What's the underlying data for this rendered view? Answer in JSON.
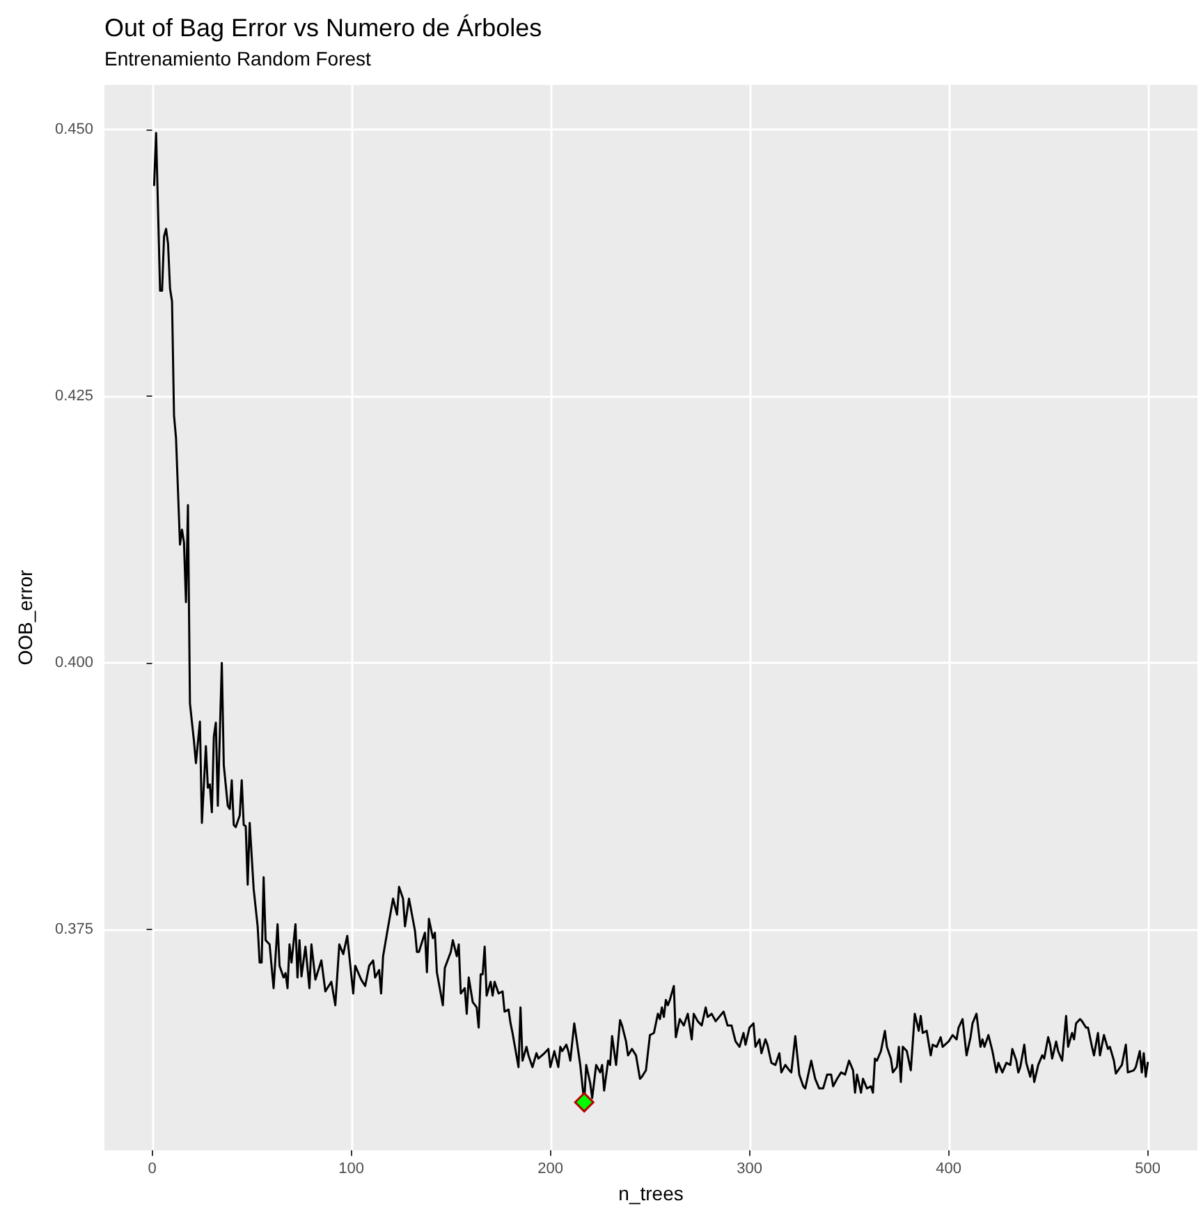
{
  "chart_data": {
    "type": "line",
    "title": "Out of Bag Error vs Numero de Árboles",
    "subtitle": "Entrenamiento Random Forest",
    "xlabel": "n_trees",
    "ylabel": "OOB_error",
    "xlim": [
      -23.95,
      524.95
    ],
    "xticks": [
      0,
      100,
      200,
      300,
      400,
      500
    ],
    "ylim": [
      0.3543,
      0.4542
    ],
    "yticks": [
      {
        "value": 0.375,
        "label": "0.375"
      },
      {
        "value": 0.4,
        "label": "0.400"
      },
      {
        "value": 0.425,
        "label": "0.425"
      },
      {
        "value": 0.45,
        "label": "0.450"
      }
    ],
    "grid": true,
    "marker": "none",
    "line_style": "solid",
    "series": [
      {
        "type": "line",
        "color": "#000000",
        "x": [
          1,
          2,
          4,
          5,
          6,
          7,
          8,
          9,
          10,
          11,
          12,
          14,
          15,
          16,
          17,
          18,
          19,
          21,
          22,
          24,
          25,
          27,
          28,
          29,
          30,
          31,
          32,
          33,
          35,
          36,
          38,
          39,
          40,
          41,
          42,
          44,
          45,
          46,
          47,
          48,
          49,
          51,
          53,
          54,
          55,
          56,
          57,
          59,
          61,
          63,
          64,
          66,
          67,
          68,
          69,
          70,
          72,
          73,
          74,
          75,
          77,
          79,
          80,
          82,
          85,
          87,
          90,
          92,
          94,
          96,
          98,
          101,
          102,
          105,
          107,
          109,
          111,
          112,
          114,
          115,
          116,
          118,
          121,
          123,
          124,
          126,
          127,
          129,
          132,
          133,
          134,
          137,
          138,
          139,
          141,
          142,
          143,
          146,
          147,
          150,
          151,
          153,
          154,
          155,
          157,
          158,
          159,
          161,
          163,
          164,
          165,
          166,
          167,
          168,
          170,
          171,
          172,
          174,
          176,
          177,
          179,
          180,
          181,
          184,
          185,
          186,
          188,
          189,
          191,
          193,
          194,
          197,
          199,
          200,
          202,
          204,
          205,
          206,
          208,
          209,
          210,
          212,
          213,
          215,
          217,
          218,
          220,
          221,
          223,
          225,
          226,
          227,
          229,
          230,
          231,
          233,
          235,
          236,
          238,
          239,
          241,
          243,
          245,
          246,
          248,
          250,
          252,
          254,
          255,
          256,
          257,
          258,
          259,
          260,
          262,
          263,
          265,
          267,
          269,
          271,
          272,
          274,
          276,
          278,
          279,
          281,
          283,
          287,
          289,
          291,
          293,
          295,
          297,
          298,
          300,
          302,
          303,
          305,
          306,
          308,
          309,
          311,
          313,
          315,
          316,
          318,
          320,
          321,
          323,
          325,
          327,
          328,
          331,
          333,
          335,
          337,
          339,
          341,
          342,
          344,
          346,
          348,
          350,
          352,
          353,
          354,
          356,
          357,
          359,
          361,
          362,
          363,
          364,
          366,
          368,
          369,
          371,
          372,
          374,
          375,
          376,
          377,
          379,
          381,
          383,
          385,
          386,
          387,
          389,
          391,
          392,
          394,
          396,
          397,
          400,
          402,
          404,
          405,
          407,
          409,
          411,
          412,
          414,
          416,
          417,
          418,
          420,
          422,
          424,
          425,
          427,
          429,
          431,
          432,
          434,
          435,
          436,
          438,
          439,
          441,
          442,
          443,
          445,
          447,
          448,
          450,
          451,
          452,
          454,
          455,
          457,
          459,
          460,
          462,
          463,
          464,
          466,
          467,
          469,
          470,
          472,
          473,
          475,
          476,
          478,
          480,
          481,
          483,
          484,
          487,
          489,
          490,
          493,
          494,
          496,
          497,
          498,
          499,
          500
        ],
        "values": [
          0.4448,
          0.4497,
          0.4349,
          0.4349,
          0.44,
          0.4407,
          0.4393,
          0.4351,
          0.4339,
          0.4232,
          0.4211,
          0.4111,
          0.4125,
          0.4113,
          0.4057,
          0.4148,
          0.3962,
          0.3927,
          0.3906,
          0.3945,
          0.385,
          0.3922,
          0.3883,
          0.3886,
          0.386,
          0.3931,
          0.3944,
          0.3866,
          0.4,
          0.3904,
          0.3866,
          0.3863,
          0.389,
          0.3848,
          0.3846,
          0.3857,
          0.389,
          0.3848,
          0.3847,
          0.3792,
          0.385,
          0.3788,
          0.3753,
          0.3719,
          0.3719,
          0.3799,
          0.374,
          0.3736,
          0.3695,
          0.3755,
          0.3716,
          0.3705,
          0.3709,
          0.3695,
          0.3736,
          0.3719,
          0.3755,
          0.3705,
          0.374,
          0.3706,
          0.3734,
          0.3695,
          0.3736,
          0.3703,
          0.3721,
          0.3692,
          0.3701,
          0.3679,
          0.3736,
          0.3727,
          0.3744,
          0.369,
          0.3716,
          0.3703,
          0.3697,
          0.3716,
          0.3721,
          0.3705,
          0.3712,
          0.369,
          0.3725,
          0.3747,
          0.3779,
          0.3764,
          0.379,
          0.3779,
          0.3753,
          0.3779,
          0.3749,
          0.3729,
          0.3729,
          0.3747,
          0.371,
          0.376,
          0.3742,
          0.3747,
          0.371,
          0.3679,
          0.3714,
          0.3729,
          0.374,
          0.3725,
          0.3736,
          0.369,
          0.3695,
          0.3671,
          0.3705,
          0.3682,
          0.3677,
          0.3658,
          0.3708,
          0.3708,
          0.3734,
          0.3688,
          0.3701,
          0.3688,
          0.3701,
          0.369,
          0.3692,
          0.3673,
          0.3675,
          0.3662,
          0.3653,
          0.3621,
          0.3677,
          0.3627,
          0.364,
          0.3632,
          0.3621,
          0.3634,
          0.3629,
          0.3634,
          0.3638,
          0.3621,
          0.3636,
          0.3621,
          0.364,
          0.3636,
          0.3642,
          0.3636,
          0.3627,
          0.3662,
          0.3649,
          0.3623,
          0.3588,
          0.3623,
          0.3606,
          0.3592,
          0.3623,
          0.3616,
          0.3623,
          0.3599,
          0.3627,
          0.3623,
          0.365,
          0.3623,
          0.3665,
          0.366,
          0.3645,
          0.3632,
          0.3638,
          0.3632,
          0.361,
          0.3612,
          0.3618,
          0.3651,
          0.3653,
          0.3671,
          0.3666,
          0.3677,
          0.3668,
          0.3684,
          0.3679,
          0.3684,
          0.3697,
          0.3649,
          0.3666,
          0.366,
          0.3671,
          0.3647,
          0.3671,
          0.3664,
          0.366,
          0.3677,
          0.3668,
          0.3671,
          0.3664,
          0.3673,
          0.366,
          0.366,
          0.3645,
          0.364,
          0.3653,
          0.3642,
          0.3658,
          0.3662,
          0.364,
          0.3647,
          0.3634,
          0.3647,
          0.3642,
          0.3625,
          0.3623,
          0.3634,
          0.3616,
          0.3623,
          0.3618,
          0.3616,
          0.365,
          0.3614,
          0.3603,
          0.3601,
          0.3627,
          0.361,
          0.3601,
          0.3601,
          0.3614,
          0.3614,
          0.3603,
          0.361,
          0.3616,
          0.3614,
          0.3627,
          0.3618,
          0.3597,
          0.3614,
          0.3597,
          0.361,
          0.3601,
          0.3603,
          0.3597,
          0.3629,
          0.3627,
          0.3636,
          0.3655,
          0.364,
          0.3629,
          0.3616,
          0.3621,
          0.364,
          0.3607,
          0.364,
          0.3636,
          0.3618,
          0.3671,
          0.3655,
          0.3669,
          0.3653,
          0.3655,
          0.3632,
          0.3642,
          0.364,
          0.3649,
          0.364,
          0.3645,
          0.3651,
          0.3647,
          0.3658,
          0.3666,
          0.3632,
          0.3649,
          0.3662,
          0.3671,
          0.364,
          0.3647,
          0.364,
          0.3651,
          0.3636,
          0.3616,
          0.3625,
          0.3616,
          0.3625,
          0.3623,
          0.3638,
          0.3627,
          0.3616,
          0.3621,
          0.3642,
          0.3625,
          0.3612,
          0.3623,
          0.3607,
          0.3623,
          0.3632,
          0.3629,
          0.3649,
          0.3642,
          0.3629,
          0.3645,
          0.3636,
          0.3627,
          0.3669,
          0.364,
          0.3653,
          0.3647,
          0.3662,
          0.3666,
          0.3664,
          0.3658,
          0.3658,
          0.364,
          0.3632,
          0.3653,
          0.3632,
          0.3651,
          0.3638,
          0.364,
          0.3627,
          0.3615,
          0.3623,
          0.3642,
          0.3616,
          0.3618,
          0.3621,
          0.3636,
          0.3616,
          0.3634,
          0.3612,
          0.3625
        ]
      },
      {
        "type": "scatter",
        "color": "#00ff00",
        "marker": "diamond",
        "x": [
          217
        ],
        "values": [
          0.3588
        ]
      }
    ]
  }
}
